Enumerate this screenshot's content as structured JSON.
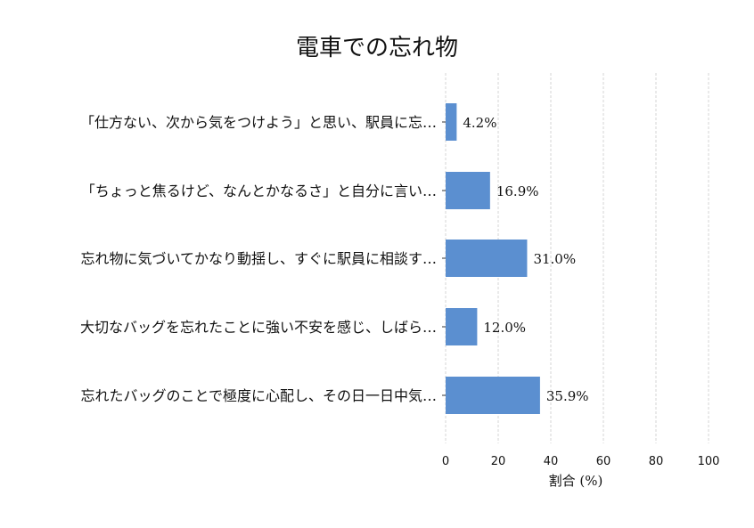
{
  "chart_data": {
    "type": "bar",
    "orientation": "horizontal",
    "title": "電車での忘れ物",
    "xlabel": "割合 (%)",
    "ylabel": "",
    "xlim": [
      0,
      100
    ],
    "xticks": [
      0,
      20,
      40,
      60,
      80,
      100
    ],
    "grid": "vertical dashed",
    "categories": [
      "「仕方ない、次から気をつけよう」と思い、駅員に忘…",
      "「ちょっと焦るけど、なんとかなるさ」と自分に言い…",
      "忘れ物に気づいてかなり動揺し、すぐに駅員に相談す…",
      "大切なバッグを忘れたことに強い不安を感じ、しばら…",
      "忘れたバッグのことで極度に心配し、その日一日中気…"
    ],
    "values": [
      4.2,
      16.9,
      31.0,
      12.0,
      35.9
    ],
    "value_labels": [
      "4.2%",
      "16.9%",
      "31.0%",
      "12.0%",
      "35.9%"
    ],
    "bar_color": "#5b8fd0"
  }
}
